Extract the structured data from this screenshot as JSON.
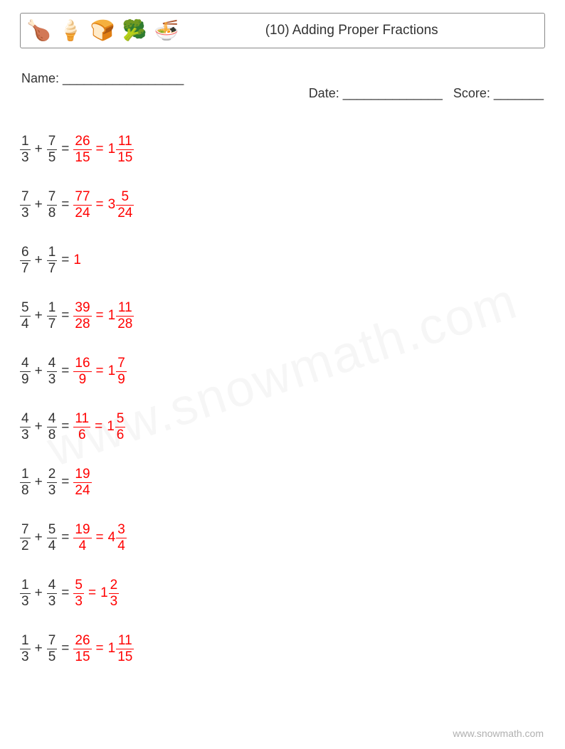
{
  "colors": {
    "text": "#333333",
    "answer": "#ff0000",
    "border": "#888888",
    "watermark": "rgba(0,0,0,0.035)",
    "footer": "#b0b0b0"
  },
  "header": {
    "icons": [
      "🍗",
      "🍦",
      "🍞",
      "🥦",
      "🍜"
    ],
    "title": "(10) Adding Proper Fractions"
  },
  "meta": {
    "name_label": "Name: _________________",
    "date_label": "Date: ______________",
    "score_label": "Score: _______"
  },
  "watermark": "www.snowmath.com",
  "footer": "www.snowmath.com",
  "problems": [
    {
      "lhs": [
        {
          "t": "frac",
          "n": "1",
          "d": "3"
        },
        {
          "t": "op",
          "v": "+"
        },
        {
          "t": "frac",
          "n": "7",
          "d": "5"
        }
      ],
      "ans": [
        {
          "t": "op",
          "v": "="
        },
        {
          "t": "frac",
          "n": "26",
          "d": "15"
        },
        {
          "t": "op",
          "v": "="
        },
        {
          "t": "mixed",
          "w": "1",
          "n": "11",
          "d": "15"
        }
      ]
    },
    {
      "lhs": [
        {
          "t": "frac",
          "n": "7",
          "d": "3"
        },
        {
          "t": "op",
          "v": "+"
        },
        {
          "t": "frac",
          "n": "7",
          "d": "8"
        }
      ],
      "ans": [
        {
          "t": "op",
          "v": "="
        },
        {
          "t": "frac",
          "n": "77",
          "d": "24"
        },
        {
          "t": "op",
          "v": "="
        },
        {
          "t": "mixed",
          "w": "3",
          "n": "5",
          "d": "24"
        }
      ]
    },
    {
      "lhs": [
        {
          "t": "frac",
          "n": "6",
          "d": "7"
        },
        {
          "t": "op",
          "v": "+"
        },
        {
          "t": "frac",
          "n": "1",
          "d": "7"
        }
      ],
      "ans": [
        {
          "t": "op",
          "v": "="
        },
        {
          "t": "int",
          "v": "1"
        }
      ]
    },
    {
      "lhs": [
        {
          "t": "frac",
          "n": "5",
          "d": "4"
        },
        {
          "t": "op",
          "v": "+"
        },
        {
          "t": "frac",
          "n": "1",
          "d": "7"
        }
      ],
      "ans": [
        {
          "t": "op",
          "v": "="
        },
        {
          "t": "frac",
          "n": "39",
          "d": "28"
        },
        {
          "t": "op",
          "v": "="
        },
        {
          "t": "mixed",
          "w": "1",
          "n": "11",
          "d": "28"
        }
      ]
    },
    {
      "lhs": [
        {
          "t": "frac",
          "n": "4",
          "d": "9"
        },
        {
          "t": "op",
          "v": "+"
        },
        {
          "t": "frac",
          "n": "4",
          "d": "3"
        }
      ],
      "ans": [
        {
          "t": "op",
          "v": "="
        },
        {
          "t": "frac",
          "n": "16",
          "d": "9"
        },
        {
          "t": "op",
          "v": "="
        },
        {
          "t": "mixed",
          "w": "1",
          "n": "7",
          "d": "9"
        }
      ]
    },
    {
      "lhs": [
        {
          "t": "frac",
          "n": "4",
          "d": "3"
        },
        {
          "t": "op",
          "v": "+"
        },
        {
          "t": "frac",
          "n": "4",
          "d": "8"
        }
      ],
      "ans": [
        {
          "t": "op",
          "v": "="
        },
        {
          "t": "frac",
          "n": "11",
          "d": "6"
        },
        {
          "t": "op",
          "v": "="
        },
        {
          "t": "mixed",
          "w": "1",
          "n": "5",
          "d": "6"
        }
      ]
    },
    {
      "lhs": [
        {
          "t": "frac",
          "n": "1",
          "d": "8"
        },
        {
          "t": "op",
          "v": "+"
        },
        {
          "t": "frac",
          "n": "2",
          "d": "3"
        }
      ],
      "ans": [
        {
          "t": "op",
          "v": "="
        },
        {
          "t": "frac",
          "n": "19",
          "d": "24"
        }
      ]
    },
    {
      "lhs": [
        {
          "t": "frac",
          "n": "7",
          "d": "2"
        },
        {
          "t": "op",
          "v": "+"
        },
        {
          "t": "frac",
          "n": "5",
          "d": "4"
        }
      ],
      "ans": [
        {
          "t": "op",
          "v": "="
        },
        {
          "t": "frac",
          "n": "19",
          "d": "4"
        },
        {
          "t": "op",
          "v": "="
        },
        {
          "t": "mixed",
          "w": "4",
          "n": "3",
          "d": "4"
        }
      ]
    },
    {
      "lhs": [
        {
          "t": "frac",
          "n": "1",
          "d": "3"
        },
        {
          "t": "op",
          "v": "+"
        },
        {
          "t": "frac",
          "n": "4",
          "d": "3"
        }
      ],
      "ans": [
        {
          "t": "op",
          "v": "="
        },
        {
          "t": "frac",
          "n": "5",
          "d": "3"
        },
        {
          "t": "op",
          "v": "="
        },
        {
          "t": "mixed",
          "w": "1",
          "n": "2",
          "d": "3"
        }
      ]
    },
    {
      "lhs": [
        {
          "t": "frac",
          "n": "1",
          "d": "3"
        },
        {
          "t": "op",
          "v": "+"
        },
        {
          "t": "frac",
          "n": "7",
          "d": "5"
        }
      ],
      "ans": [
        {
          "t": "op",
          "v": "="
        },
        {
          "t": "frac",
          "n": "26",
          "d": "15"
        },
        {
          "t": "op",
          "v": "="
        },
        {
          "t": "mixed",
          "w": "1",
          "n": "11",
          "d": "15"
        }
      ]
    }
  ]
}
